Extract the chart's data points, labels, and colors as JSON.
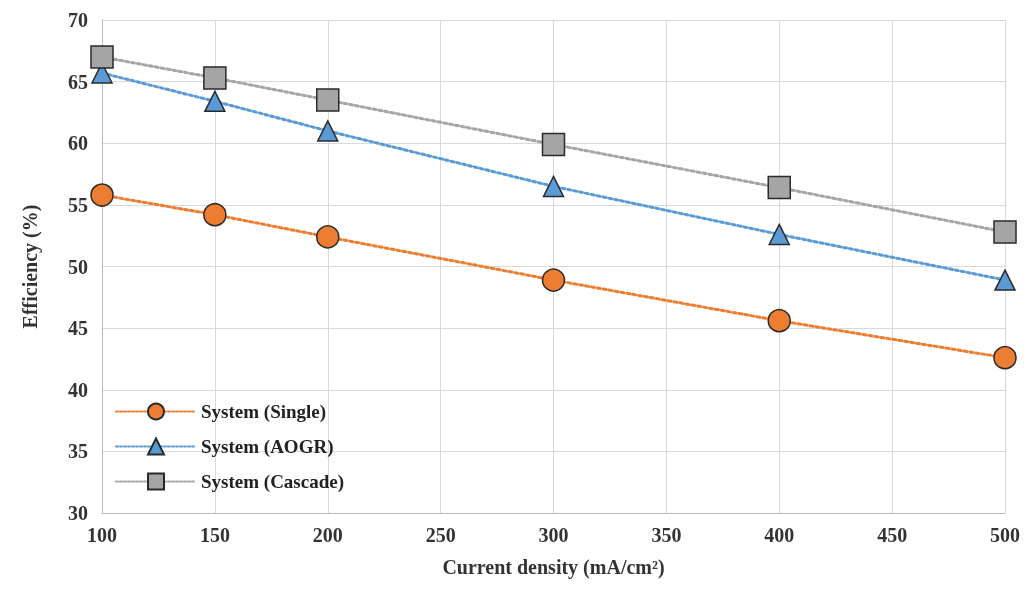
{
  "chart_data": {
    "type": "line",
    "xlabel": "Current density (mA/cm²)",
    "ylabel": "Efficiency (%)",
    "x": [
      100,
      150,
      200,
      300,
      400,
      500
    ],
    "series": [
      {
        "name": "System (Single)",
        "color": "#ed7d31",
        "marker": "circle",
        "values": [
          55.8,
          54.2,
          52.4,
          48.9,
          45.6,
          42.6
        ]
      },
      {
        "name": "System (AOGR)",
        "color": "#5b9bd5",
        "marker": "triangle",
        "values": [
          65.7,
          63.4,
          61.0,
          56.5,
          52.6,
          48.9
        ]
      },
      {
        "name": "System (Cascade)",
        "color": "#a5a5a5",
        "marker": "square",
        "values": [
          67.0,
          65.3,
          63.5,
          59.9,
          56.4,
          52.8
        ]
      }
    ],
    "xlim": [
      100,
      500
    ],
    "xticks": [
      100,
      150,
      200,
      250,
      300,
      350,
      400,
      450,
      500
    ],
    "ylim": [
      30,
      70
    ],
    "yticks": [
      30,
      35,
      40,
      45,
      50,
      55,
      60,
      65,
      70
    ],
    "grid": true,
    "legend": "bottom left",
    "line_style": "dotted"
  }
}
